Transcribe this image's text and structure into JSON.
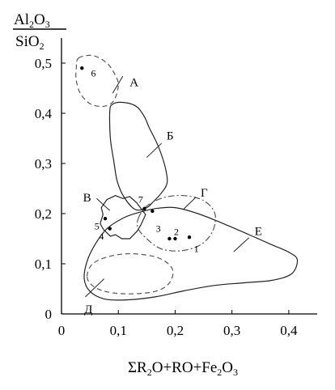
{
  "chart_data": {
    "type": "scatter",
    "title": "",
    "ylabel_html": {
      "parts": [
        {
          "t": "Al"
        },
        {
          "t": "2",
          "sub": true
        },
        {
          "t": "O"
        },
        {
          "t": "3",
          "sub": true
        }
      ],
      "denominator": [
        {
          "t": "SiO"
        },
        {
          "t": "2",
          "sub": true
        }
      ]
    },
    "xlabel_html": [
      {
        "t": "ΣR"
      },
      {
        "t": "2",
        "sub": true
      },
      {
        "t": "O+RO+Fe"
      },
      {
        "t": "2",
        "sub": true
      },
      {
        "t": "O"
      },
      {
        "t": "3",
        "sub": true
      }
    ],
    "xlim": [
      0,
      0.45
    ],
    "ylim": [
      0,
      0.55
    ],
    "x_ticks": [
      {
        "value": 0,
        "label": "0"
      },
      {
        "value": 0.1,
        "label": "0,1"
      },
      {
        "value": 0.2,
        "label": "0,2"
      },
      {
        "value": 0.3,
        "label": "0,3"
      },
      {
        "value": 0.4,
        "label": "0,4"
      }
    ],
    "y_ticks": [
      {
        "value": 0,
        "label": "0"
      },
      {
        "value": 0.1,
        "label": "0,1"
      },
      {
        "value": 0.2,
        "label": "0,2"
      },
      {
        "value": 0.3,
        "label": "0,3"
      },
      {
        "value": 0.4,
        "label": "0,4"
      },
      {
        "value": 0.5,
        "label": "0,5"
      }
    ],
    "grid": false,
    "points": [
      {
        "label": "1",
        "x": 0.225,
        "y": 0.153,
        "lx": 0.233,
        "ly": 0.13
      },
      {
        "label": "2",
        "x": 0.19,
        "y": 0.15,
        "lx": 0.198,
        "ly": 0.164
      },
      {
        "label": "2",
        "x": 0.2,
        "y": 0.15,
        "lx": null,
        "ly": null
      },
      {
        "label": "3",
        "x": 0.16,
        "y": 0.205,
        "lx": 0.166,
        "ly": 0.17
      },
      {
        "label": "4",
        "x": 0.085,
        "y": 0.17,
        "lx": 0.066,
        "ly": 0.155
      },
      {
        "label": "5",
        "x": 0.077,
        "y": 0.19,
        "lx": 0.058,
        "ly": 0.175
      },
      {
        "label": "6",
        "x": 0.036,
        "y": 0.49,
        "lx": 0.052,
        "ly": 0.48
      },
      {
        "label": "7",
        "x": 0.146,
        "y": 0.21,
        "lx": 0.135,
        "ly": 0.228
      }
    ],
    "regions": [
      {
        "name": "А",
        "style": "dashed",
        "label_pos": [
          0.12,
          0.462
        ],
        "leader": [
          [
            0.09,
            0.44
          ],
          [
            0.108,
            0.474
          ]
        ],
        "outline": [
          [
            0.03,
            0.51
          ],
          [
            0.055,
            0.515
          ],
          [
            0.08,
            0.5
          ],
          [
            0.095,
            0.475
          ],
          [
            0.1,
            0.455
          ],
          [
            0.092,
            0.425
          ],
          [
            0.075,
            0.414
          ],
          [
            0.052,
            0.418
          ],
          [
            0.034,
            0.438
          ],
          [
            0.026,
            0.465
          ],
          [
            0.026,
            0.49
          ]
        ]
      },
      {
        "name": "Б",
        "style": "solid",
        "label_pos": [
          0.185,
          0.356
        ],
        "leader": [
          [
            0.15,
            0.312
          ],
          [
            0.176,
            0.34
          ]
        ],
        "outline": [
          [
            0.085,
            0.405
          ],
          [
            0.09,
            0.418
          ],
          [
            0.105,
            0.422
          ],
          [
            0.13,
            0.415
          ],
          [
            0.145,
            0.395
          ],
          [
            0.155,
            0.37
          ],
          [
            0.17,
            0.335
          ],
          [
            0.182,
            0.295
          ],
          [
            0.186,
            0.262
          ],
          [
            0.175,
            0.24
          ],
          [
            0.16,
            0.222
          ],
          [
            0.15,
            0.212
          ],
          [
            0.13,
            0.208
          ],
          [
            0.11,
            0.233
          ],
          [
            0.098,
            0.265
          ],
          [
            0.092,
            0.305
          ],
          [
            0.086,
            0.35
          ]
        ]
      },
      {
        "name": "В",
        "style": "solid",
        "label_pos": [
          0.038,
          0.232
        ],
        "leader": [
          [
            0.062,
            0.23
          ],
          [
            0.085,
            0.206
          ]
        ],
        "outline": [
          [
            0.07,
            0.212
          ],
          [
            0.08,
            0.228
          ],
          [
            0.095,
            0.236
          ],
          [
            0.108,
            0.23
          ],
          [
            0.12,
            0.234
          ],
          [
            0.132,
            0.222
          ],
          [
            0.14,
            0.21
          ],
          [
            0.148,
            0.198
          ],
          [
            0.14,
            0.178
          ],
          [
            0.133,
            0.165
          ],
          [
            0.12,
            0.15
          ],
          [
            0.106,
            0.15
          ],
          [
            0.095,
            0.158
          ],
          [
            0.086,
            0.155
          ],
          [
            0.074,
            0.168
          ],
          [
            0.068,
            0.18
          ],
          [
            0.073,
            0.198
          ]
        ]
      },
      {
        "name": "Г",
        "style": "dashdot",
        "label_pos": [
          0.245,
          0.242
        ],
        "leader": [
          [
            0.214,
            0.208
          ],
          [
            0.236,
            0.232
          ]
        ],
        "outline": [
          [
            0.135,
            0.19
          ],
          [
            0.15,
            0.215
          ],
          [
            0.18,
            0.232
          ],
          [
            0.215,
            0.236
          ],
          [
            0.25,
            0.226
          ],
          [
            0.27,
            0.2
          ],
          [
            0.266,
            0.165
          ],
          [
            0.245,
            0.138
          ],
          [
            0.21,
            0.126
          ],
          [
            0.175,
            0.13
          ],
          [
            0.15,
            0.15
          ],
          [
            0.135,
            0.17
          ]
        ]
      },
      {
        "name": "Д",
        "style": "dashed",
        "label_pos": [
          0.04,
          0.01
        ],
        "leader": [
          [
            0.042,
            0.034
          ],
          [
            0.075,
            0.07
          ]
        ],
        "outline": [
          [
            0.045,
            0.075
          ],
          [
            0.055,
            0.1
          ],
          [
            0.085,
            0.115
          ],
          [
            0.125,
            0.12
          ],
          [
            0.17,
            0.112
          ],
          [
            0.195,
            0.09
          ],
          [
            0.19,
            0.062
          ],
          [
            0.165,
            0.045
          ],
          [
            0.12,
            0.04
          ],
          [
            0.08,
            0.044
          ],
          [
            0.055,
            0.056
          ]
        ]
      },
      {
        "name": "Е",
        "style": "solid",
        "label_pos": [
          0.34,
          0.165
        ],
        "leader": [
          [
            0.303,
            0.124
          ],
          [
            0.33,
            0.152
          ]
        ],
        "outline": [
          [
            0.045,
            0.105
          ],
          [
            0.06,
            0.14
          ],
          [
            0.08,
            0.17
          ],
          [
            0.11,
            0.192
          ],
          [
            0.135,
            0.202
          ],
          [
            0.165,
            0.21
          ],
          [
            0.2,
            0.212
          ],
          [
            0.24,
            0.2
          ],
          [
            0.285,
            0.18
          ],
          [
            0.33,
            0.158
          ],
          [
            0.37,
            0.138
          ],
          [
            0.4,
            0.123
          ],
          [
            0.415,
            0.108
          ],
          [
            0.405,
            0.08
          ],
          [
            0.37,
            0.067
          ],
          [
            0.32,
            0.062
          ],
          [
            0.27,
            0.057
          ],
          [
            0.215,
            0.046
          ],
          [
            0.165,
            0.034
          ],
          [
            0.115,
            0.028
          ],
          [
            0.075,
            0.03
          ],
          [
            0.05,
            0.045
          ],
          [
            0.04,
            0.07
          ]
        ]
      }
    ]
  }
}
